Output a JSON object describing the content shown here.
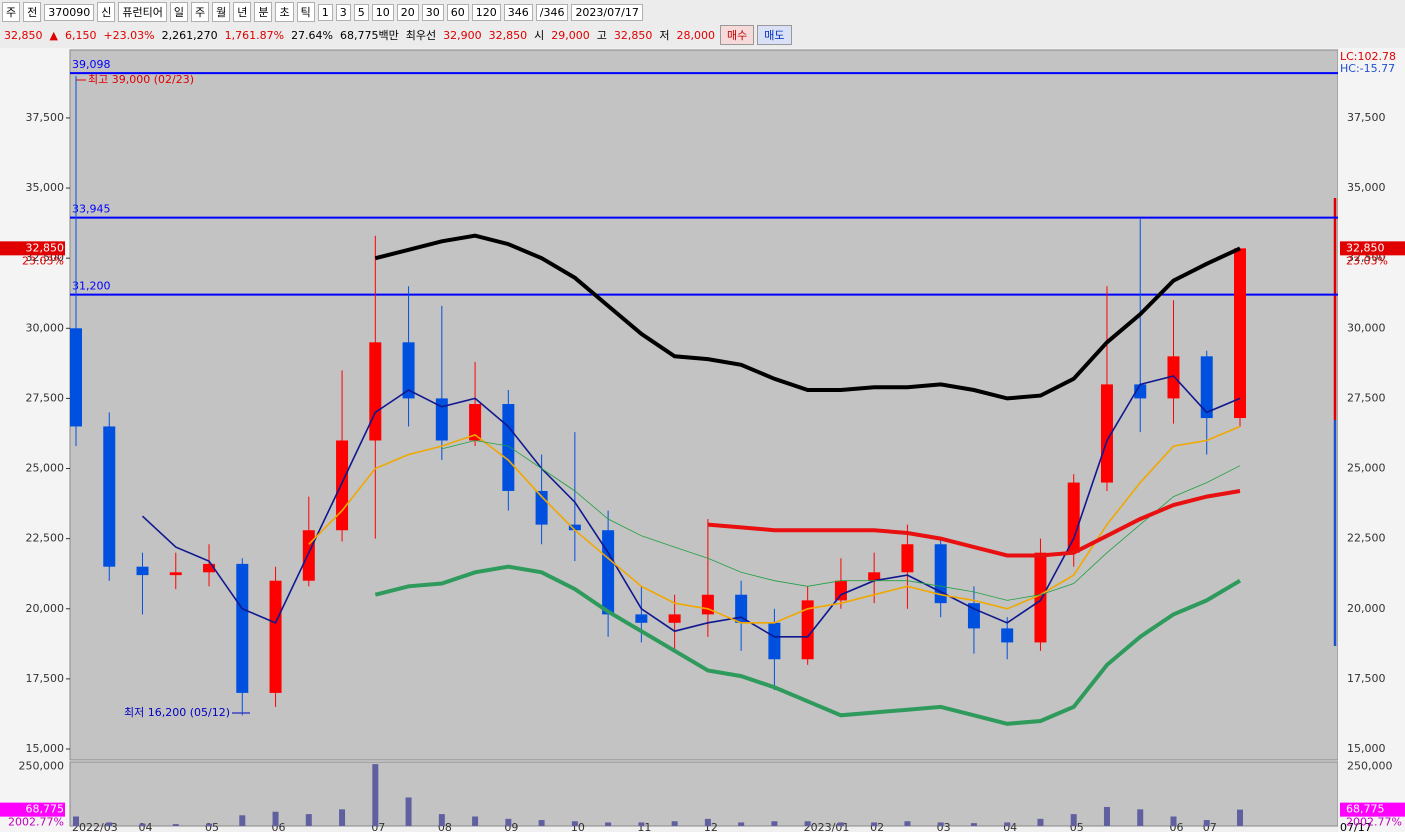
{
  "toolbar": {
    "row1": [
      "주",
      "전",
      "370090",
      "신",
      "퓨런티어",
      "일",
      "주",
      "월",
      "년",
      "분",
      "초",
      "틱",
      "1",
      "3",
      "5",
      "10",
      "20",
      "30",
      "60",
      "120",
      "346",
      "/346",
      "2023/07/17"
    ],
    "row2": [
      {
        "text": "32,850",
        "color": "#e00000"
      },
      {
        "text": "▲",
        "color": "#e00000"
      },
      {
        "text": "6,150",
        "color": "#e00000"
      },
      {
        "text": "+23.03%",
        "color": "#e00000"
      },
      {
        "text": "2,261,270",
        "color": "#000000"
      },
      {
        "text": "1,761.87%",
        "color": "#e00000"
      },
      {
        "text": "27.64%",
        "color": "#000000"
      },
      {
        "text": "68,775백만",
        "color": "#000000"
      },
      {
        "text": "최우선",
        "color": "#000000"
      },
      {
        "text": "32,900",
        "color": "#e00000"
      },
      {
        "text": "32,850",
        "color": "#e00000"
      },
      {
        "text": "시",
        "color": "#000000"
      },
      {
        "text": "29,000",
        "color": "#e00000"
      },
      {
        "text": "고",
        "color": "#000000"
      },
      {
        "text": "32,850",
        "color": "#e00000"
      },
      {
        "text": "저",
        "color": "#000000"
      },
      {
        "text": "28,000",
        "color": "#e00000"
      }
    ],
    "buy": "매수",
    "sell": "매도"
  },
  "chart_data": {
    "type": "candlestick",
    "categories": [
      "2022/03",
      null,
      "04",
      null,
      "05",
      null,
      "06",
      null,
      null,
      "07",
      null,
      "08",
      null,
      "09",
      null,
      "10",
      null,
      "11",
      null,
      "12",
      null,
      null,
      "2023/01",
      null,
      "02",
      null,
      "03",
      null,
      "04",
      null,
      "05",
      null,
      null,
      "06",
      "07",
      null
    ],
    "last_date": "07/17",
    "open": [
      30000,
      26500,
      21500,
      21200,
      21300,
      21600,
      17000,
      21000,
      22800,
      26000,
      29500,
      27500,
      26000,
      27300,
      24200,
      23000,
      22800,
      19800,
      19500,
      19800,
      20500,
      19500,
      18200,
      20300,
      21000,
      21300,
      22300,
      20200,
      19300,
      18800,
      22000,
      24500,
      28000,
      27500,
      29000,
      26800
    ],
    "high": [
      39000,
      27000,
      22000,
      22000,
      22300,
      21800,
      21500,
      24000,
      28500,
      33300,
      31500,
      30800,
      28800,
      27800,
      25500,
      26300,
      23500,
      20800,
      20500,
      23200,
      21000,
      20000,
      20800,
      21800,
      22000,
      23000,
      22500,
      20800,
      19700,
      22500,
      24800,
      31500,
      33900,
      31000,
      29200,
      32850
    ],
    "low": [
      25800,
      21000,
      19800,
      20700,
      20800,
      16200,
      16500,
      20800,
      22400,
      22500,
      26500,
      25300,
      25800,
      23500,
      22300,
      21700,
      19000,
      18800,
      18500,
      19000,
      18500,
      17100,
      18000,
      20000,
      20200,
      20000,
      19700,
      18400,
      18200,
      18500,
      21500,
      24200,
      26300,
      26600,
      25500,
      26500
    ],
    "close": [
      26500,
      21500,
      21200,
      21300,
      21600,
      17000,
      21000,
      22800,
      26000,
      29500,
      27500,
      26000,
      27300,
      24200,
      23000,
      22800,
      19800,
      19500,
      19800,
      20500,
      19500,
      18200,
      20300,
      21000,
      21300,
      22300,
      20200,
      19300,
      18800,
      22000,
      24500,
      28000,
      27500,
      29000,
      26800,
      32850
    ],
    "up_color": "#ff0000",
    "down_color": "#0050e0",
    "series": [
      {
        "color": "#101890",
        "width": 1.6,
        "values": [
          null,
          null,
          23300,
          22200,
          21700,
          20000,
          19500,
          22000,
          24500,
          27000,
          27800,
          27200,
          27500,
          26500,
          25000,
          23800,
          22000,
          20000,
          19200,
          19500,
          19700,
          19000,
          19000,
          20500,
          21000,
          21200,
          20600,
          20000,
          19500,
          20300,
          22500,
          26000,
          28000,
          28300,
          27000,
          27500
        ]
      },
      {
        "color": "#f0a800",
        "width": 1.6,
        "values": [
          null,
          null,
          null,
          null,
          null,
          null,
          null,
          22300,
          23500,
          25000,
          25500,
          25800,
          26200,
          25300,
          24000,
          22800,
          21800,
          20800,
          20200,
          20000,
          19500,
          19500,
          20000,
          20200,
          20500,
          20800,
          20500,
          20300,
          20000,
          20500,
          21200,
          23000,
          24500,
          25800,
          26000,
          26500
        ]
      },
      {
        "color": "#20a040",
        "width": 0.8,
        "values": [
          null,
          null,
          null,
          null,
          null,
          null,
          null,
          null,
          null,
          null,
          null,
          25700,
          26000,
          25800,
          25000,
          24200,
          23200,
          22600,
          22200,
          21800,
          21300,
          21000,
          20800,
          21000,
          21000,
          21000,
          20800,
          20600,
          20300,
          20500,
          20900,
          22000,
          23000,
          24000,
          24500,
          25100
        ]
      },
      {
        "color": "#000000",
        "width": 4,
        "values": [
          null,
          null,
          null,
          null,
          null,
          null,
          null,
          null,
          null,
          32500,
          32800,
          33100,
          33300,
          33000,
          32500,
          31800,
          30800,
          29800,
          29000,
          28900,
          28700,
          28200,
          27800,
          27800,
          27900,
          27900,
          28000,
          27800,
          27500,
          27600,
          28200,
          29500,
          30500,
          31700,
          32300,
          32850
        ]
      },
      {
        "color": "#e81010",
        "width": 4,
        "values": [
          null,
          null,
          null,
          null,
          null,
          null,
          null,
          null,
          null,
          null,
          null,
          null,
          null,
          null,
          null,
          null,
          null,
          null,
          null,
          23000,
          22900,
          22800,
          22800,
          22800,
          22800,
          22700,
          22500,
          22200,
          21900,
          21900,
          22000,
          22600,
          23200,
          23700,
          24000,
          24200
        ]
      },
      {
        "color": "#2e9a5c",
        "width": 4,
        "values": [
          null,
          null,
          null,
          null,
          null,
          null,
          null,
          null,
          null,
          20500,
          20800,
          20900,
          21300,
          21500,
          21300,
          20700,
          19900,
          19200,
          18500,
          17800,
          17600,
          17200,
          16700,
          16200,
          16300,
          16400,
          16500,
          16200,
          15900,
          16000,
          16500,
          18000,
          19000,
          19800,
          20300,
          21000
        ]
      }
    ],
    "ylim": [
      14608,
      39922
    ],
    "yticks": [
      {
        "value": 15000,
        "label": "15,000"
      },
      {
        "value": 17500,
        "label": "17,500"
      },
      {
        "value": 20000,
        "label": "20,000"
      },
      {
        "value": 22500,
        "label": "22,500"
      },
      {
        "value": 25000,
        "label": "25,000"
      },
      {
        "value": 27500,
        "label": "27,500"
      },
      {
        "value": 30000,
        "label": "30,000"
      },
      {
        "value": 32500,
        "label": "32,500"
      },
      {
        "value": 35000,
        "label": "35,000"
      },
      {
        "value": 37500,
        "label": "37,500"
      }
    ],
    "hlines": [
      {
        "value": 39098,
        "label": "39,098"
      },
      {
        "value": 33945,
        "label": "33,945"
      },
      {
        "value": 31200,
        "label": "31,200"
      }
    ],
    "hline_color": "#0000ff",
    "max_note": "최고 39,000 (02/23)",
    "min_note": "최저 16,200 (05/12)",
    "price_tag": {
      "value": 32850,
      "label": "32,850",
      "change": "23.03%"
    },
    "lc": "LC:102.78",
    "hc": "HC:-15.77",
    "volume": {
      "values": [
        40000,
        15000,
        10000,
        8000,
        10000,
        45000,
        60000,
        50000,
        70000,
        260000,
        120000,
        50000,
        40000,
        30000,
        25000,
        20000,
        15000,
        15000,
        20000,
        30000,
        15000,
        20000,
        20000,
        15000,
        15000,
        20000,
        15000,
        12000,
        15000,
        30000,
        50000,
        80000,
        70000,
        40000,
        25000,
        68775
      ],
      "color": "#6060a0",
      "ylim": [
        0,
        269000
      ],
      "yticks": [
        {
          "value": 250000,
          "label": "250,000"
        }
      ],
      "tag": {
        "value": 68775,
        "label": "68,775",
        "change": "2002.77%"
      }
    }
  }
}
